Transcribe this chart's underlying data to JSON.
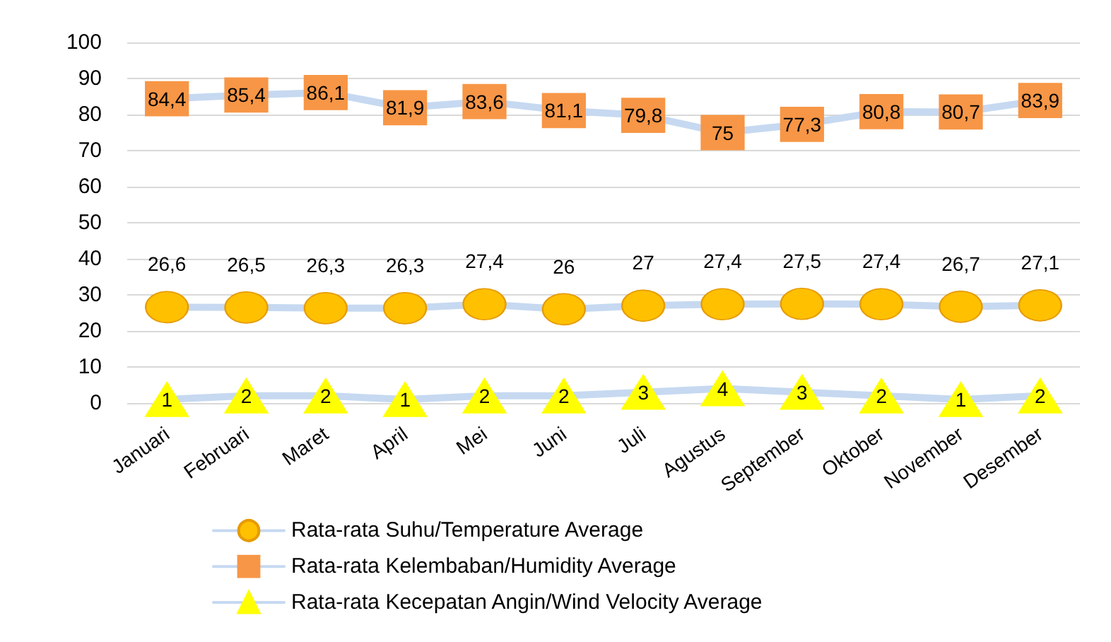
{
  "chart_data": {
    "type": "line",
    "categories": [
      "Januari",
      "Februari",
      "Maret",
      "April",
      "Mei",
      "Juni",
      "Juli",
      "Agustus",
      "September",
      "Oktober",
      "November",
      "Desember"
    ],
    "series": [
      {
        "name": "Rata-rata Suhu/Temperature Average",
        "color": "#ffc000",
        "marker": "circle",
        "values": [
          26.6,
          26.5,
          26.3,
          26.3,
          27.4,
          26,
          27,
          27.4,
          27.5,
          27.4,
          26.7,
          27.1
        ],
        "value_labels": [
          "26,6",
          "26,5",
          "26,3",
          "26,3",
          "27,4",
          "26",
          "27",
          "27,4",
          "27,5",
          "27,4",
          "26,7",
          "27,1"
        ]
      },
      {
        "name": "Rata-rata Kelembaban/Humidity Average",
        "color": "#f79646",
        "marker": "square",
        "values": [
          84.4,
          85.4,
          86.1,
          81.9,
          83.6,
          81.1,
          79.8,
          75,
          77.3,
          80.8,
          80.7,
          83.9
        ],
        "value_labels": [
          "84,4",
          "85,4",
          "86,1",
          "81,9",
          "83,6",
          "81,1",
          "79,8",
          "75",
          "77,3",
          "80,8",
          "80,7",
          "83,9"
        ]
      },
      {
        "name": "Rata-rata Kecepatan Angin/Wind Velocity Average",
        "color": "#ffff00",
        "marker": "triangle",
        "values": [
          1,
          2,
          2,
          1,
          2,
          2,
          3,
          4,
          3,
          2,
          1,
          2
        ],
        "value_labels": [
          "1",
          "2",
          "2",
          "1",
          "2",
          "2",
          "3",
          "4",
          "3",
          "2",
          "1",
          "2"
        ]
      }
    ],
    "ylim": [
      0,
      100
    ],
    "yticks": [
      0,
      10,
      20,
      30,
      40,
      50,
      60,
      70,
      80,
      90,
      100
    ],
    "grid": "y",
    "legend": "bottom"
  }
}
